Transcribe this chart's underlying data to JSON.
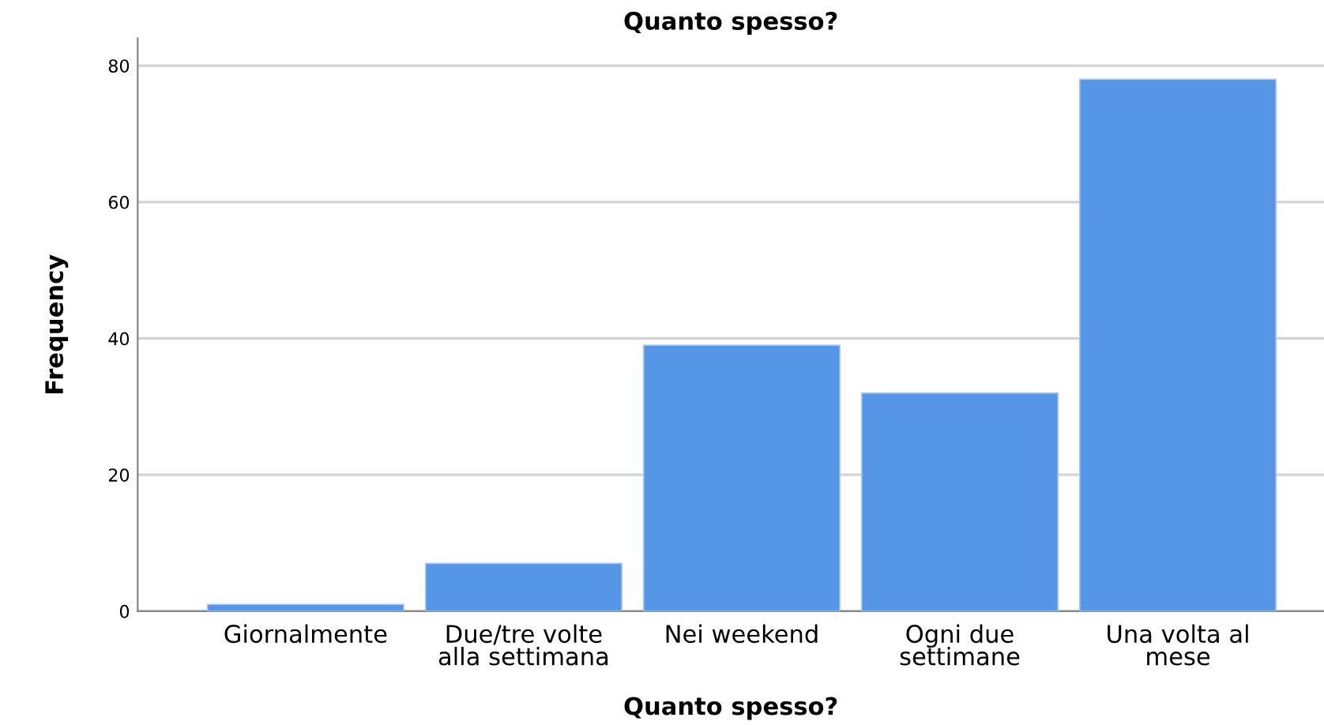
{
  "chart_data": {
    "type": "bar",
    "title": "Quanto spesso?",
    "xlabel": "Quanto spesso?",
    "ylabel": "Frequency",
    "categories": [
      "Giornalmente",
      "Due/tre volte\nalla settimana",
      "Nei weekend",
      "Ogni due\nsettimane",
      "Una volta al\nmese"
    ],
    "values": [
      1,
      7,
      39,
      32,
      78
    ],
    "color": "#5596e6",
    "ylim": [
      0,
      84
    ],
    "yticks": [
      0,
      20,
      40,
      60,
      80
    ],
    "grid": "y",
    "legend": false
  }
}
